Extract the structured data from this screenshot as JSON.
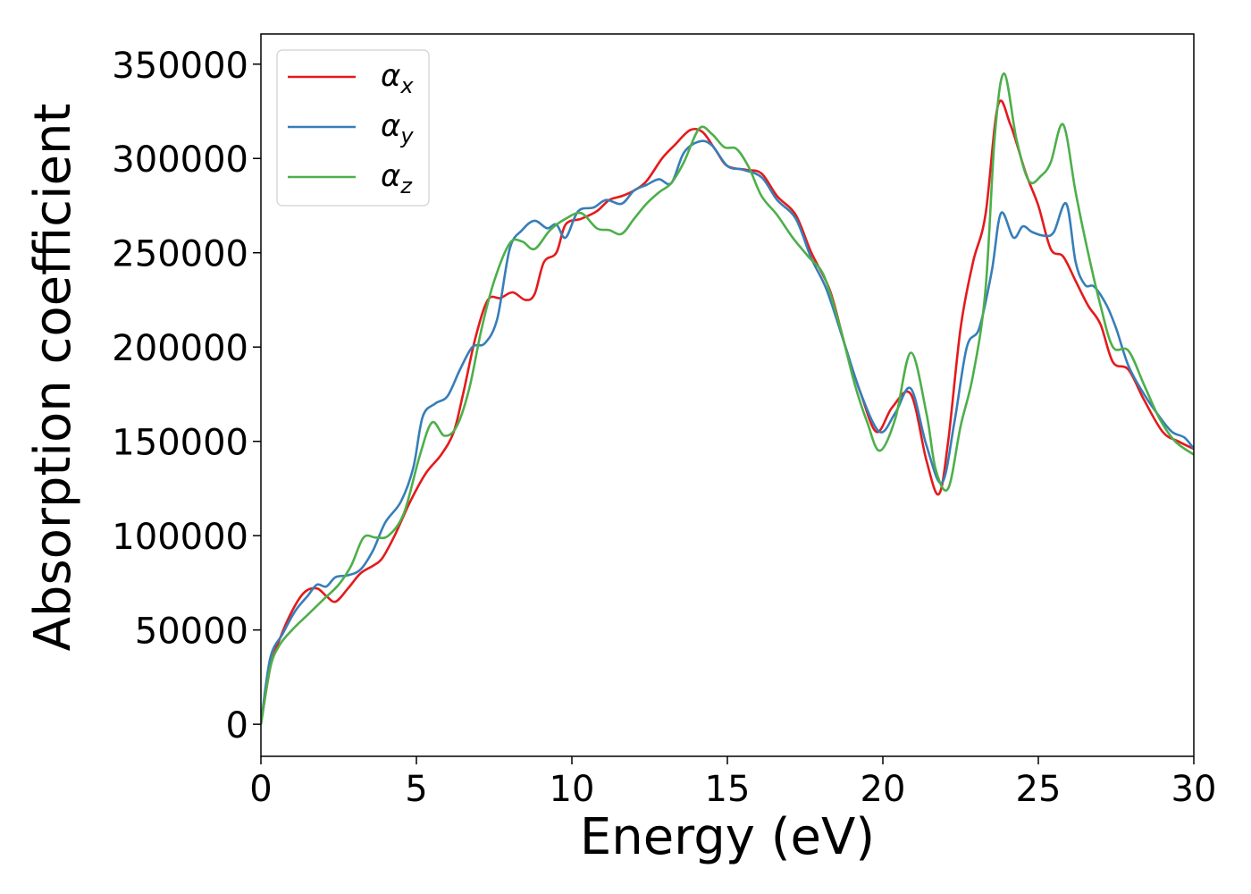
{
  "chart_data": {
    "type": "line",
    "xlabel": "Energy (eV)",
    "ylabel": "Absorption coefficient",
    "xlim": [
      0,
      30
    ],
    "ylim": [
      -17000,
      366000
    ],
    "x_ticks": [
      0,
      5,
      10,
      15,
      20,
      25,
      30
    ],
    "y_ticks": [
      0,
      50000,
      100000,
      150000,
      200000,
      250000,
      300000,
      350000
    ],
    "grid": false,
    "legend_position": "top-left",
    "series": [
      {
        "name": "αx",
        "symbol": "α",
        "subscript": "x",
        "color": "#e41a1c",
        "points": [
          [
            0,
            0
          ],
          [
            0.3,
            30000
          ],
          [
            0.6,
            45000
          ],
          [
            1,
            60000
          ],
          [
            1.4,
            70000
          ],
          [
            1.8,
            72000
          ],
          [
            2.1,
            68000
          ],
          [
            2.4,
            65000
          ],
          [
            2.8,
            72000
          ],
          [
            3.2,
            80000
          ],
          [
            3.6,
            84000
          ],
          [
            3.9,
            88000
          ],
          [
            4.3,
            100000
          ],
          [
            4.8,
            118000
          ],
          [
            5.3,
            133000
          ],
          [
            5.8,
            143000
          ],
          [
            6.2,
            155000
          ],
          [
            6.5,
            175000
          ],
          [
            6.9,
            205000
          ],
          [
            7.3,
            225000
          ],
          [
            7.7,
            226000
          ],
          [
            8.1,
            229000
          ],
          [
            8.5,
            225000
          ],
          [
            8.8,
            228000
          ],
          [
            9.1,
            245000
          ],
          [
            9.5,
            250000
          ],
          [
            9.8,
            265000
          ],
          [
            10.3,
            268000
          ],
          [
            10.8,
            272000
          ],
          [
            11.2,
            278000
          ],
          [
            11.6,
            280000
          ],
          [
            12,
            283000
          ],
          [
            12.4,
            288000
          ],
          [
            12.9,
            300000
          ],
          [
            13.3,
            307000
          ],
          [
            13.8,
            315000
          ],
          [
            14.2,
            314000
          ],
          [
            14.6,
            305000
          ],
          [
            15,
            296000
          ],
          [
            15.6,
            294000
          ],
          [
            16.1,
            292000
          ],
          [
            16.6,
            280000
          ],
          [
            17.2,
            270000
          ],
          [
            17.7,
            250000
          ],
          [
            18.3,
            230000
          ],
          [
            18.8,
            200000
          ],
          [
            19.3,
            175000
          ],
          [
            19.8,
            155000
          ],
          [
            20.3,
            168000
          ],
          [
            20.9,
            175000
          ],
          [
            21.4,
            140000
          ],
          [
            21.8,
            122000
          ],
          [
            22.1,
            150000
          ],
          [
            22.5,
            210000
          ],
          [
            22.9,
            245000
          ],
          [
            23.3,
            270000
          ],
          [
            23.7,
            328000
          ],
          [
            24.1,
            318000
          ],
          [
            24.6,
            292000
          ],
          [
            25,
            275000
          ],
          [
            25.4,
            252000
          ],
          [
            25.8,
            248000
          ],
          [
            26.2,
            235000
          ],
          [
            26.6,
            222000
          ],
          [
            27,
            212000
          ],
          [
            27.4,
            192000
          ],
          [
            27.9,
            188000
          ],
          [
            28.4,
            172000
          ],
          [
            29,
            155000
          ],
          [
            29.5,
            150000
          ],
          [
            30,
            146000
          ]
        ]
      },
      {
        "name": "αy",
        "symbol": "α",
        "subscript": "y",
        "color": "#377eb8",
        "points": [
          [
            0,
            0
          ],
          [
            0.3,
            35000
          ],
          [
            0.7,
            48000
          ],
          [
            1.1,
            60000
          ],
          [
            1.5,
            68000
          ],
          [
            1.8,
            74000
          ],
          [
            2.1,
            73000
          ],
          [
            2.4,
            78000
          ],
          [
            2.8,
            79000
          ],
          [
            3.2,
            82000
          ],
          [
            3.6,
            92000
          ],
          [
            4,
            107000
          ],
          [
            4.5,
            118000
          ],
          [
            4.9,
            136000
          ],
          [
            5.2,
            163000
          ],
          [
            5.6,
            170000
          ],
          [
            6,
            174000
          ],
          [
            6.4,
            188000
          ],
          [
            6.8,
            200000
          ],
          [
            7.2,
            202000
          ],
          [
            7.6,
            215000
          ],
          [
            8,
            252000
          ],
          [
            8.4,
            262000
          ],
          [
            8.8,
            267000
          ],
          [
            9.2,
            263000
          ],
          [
            9.5,
            265000
          ],
          [
            9.8,
            258000
          ],
          [
            10.2,
            272000
          ],
          [
            10.7,
            274000
          ],
          [
            11.1,
            278000
          ],
          [
            11.6,
            276000
          ],
          [
            12,
            283000
          ],
          [
            12.4,
            286000
          ],
          [
            12.8,
            289000
          ],
          [
            13.2,
            287000
          ],
          [
            13.6,
            303000
          ],
          [
            14.1,
            309000
          ],
          [
            14.5,
            307000
          ],
          [
            15,
            296000
          ],
          [
            15.5,
            294000
          ],
          [
            16.1,
            290000
          ],
          [
            16.6,
            278000
          ],
          [
            17.2,
            268000
          ],
          [
            17.7,
            247000
          ],
          [
            18.2,
            230000
          ],
          [
            18.8,
            200000
          ],
          [
            19.3,
            175000
          ],
          [
            19.9,
            155000
          ],
          [
            20.4,
            165000
          ],
          [
            20.9,
            178000
          ],
          [
            21.4,
            148000
          ],
          [
            21.9,
            128000
          ],
          [
            22.3,
            160000
          ],
          [
            22.7,
            200000
          ],
          [
            23.1,
            210000
          ],
          [
            23.5,
            240000
          ],
          [
            23.8,
            271000
          ],
          [
            24.2,
            258000
          ],
          [
            24.5,
            264000
          ],
          [
            24.8,
            261000
          ],
          [
            25.2,
            259000
          ],
          [
            25.5,
            261000
          ],
          [
            25.9,
            276000
          ],
          [
            26.2,
            245000
          ],
          [
            26.5,
            233000
          ],
          [
            26.8,
            232000
          ],
          [
            27.2,
            222000
          ],
          [
            27.5,
            210000
          ],
          [
            27.9,
            190000
          ],
          [
            28.4,
            175000
          ],
          [
            28.9,
            163000
          ],
          [
            29.3,
            155000
          ],
          [
            29.7,
            152000
          ],
          [
            30,
            146000
          ]
        ]
      },
      {
        "name": "αz",
        "symbol": "α",
        "subscript": "z",
        "color": "#4daf4a",
        "points": [
          [
            0,
            0
          ],
          [
            0.3,
            30000
          ],
          [
            0.6,
            42000
          ],
          [
            1,
            50000
          ],
          [
            1.5,
            58000
          ],
          [
            2,
            66000
          ],
          [
            2.5,
            74000
          ],
          [
            2.9,
            84000
          ],
          [
            3.3,
            99000
          ],
          [
            3.7,
            99000
          ],
          [
            4.1,
            100000
          ],
          [
            4.6,
            112000
          ],
          [
            5.1,
            142000
          ],
          [
            5.5,
            160000
          ],
          [
            5.9,
            153000
          ],
          [
            6.3,
            158000
          ],
          [
            6.7,
            178000
          ],
          [
            7.1,
            210000
          ],
          [
            7.5,
            235000
          ],
          [
            8,
            255000
          ],
          [
            8.4,
            256000
          ],
          [
            8.8,
            252000
          ],
          [
            9.3,
            262000
          ],
          [
            9.8,
            268000
          ],
          [
            10.3,
            271000
          ],
          [
            10.8,
            263000
          ],
          [
            11.2,
            262000
          ],
          [
            11.6,
            260000
          ],
          [
            12,
            268000
          ],
          [
            12.4,
            276000
          ],
          [
            12.8,
            282000
          ],
          [
            13.2,
            287000
          ],
          [
            13.6,
            298000
          ],
          [
            14.1,
            316000
          ],
          [
            14.5,
            313000
          ],
          [
            14.9,
            306000
          ],
          [
            15.3,
            305000
          ],
          [
            15.7,
            295000
          ],
          [
            16.1,
            280000
          ],
          [
            16.6,
            270000
          ],
          [
            17.1,
            258000
          ],
          [
            17.6,
            248000
          ],
          [
            18.1,
            238000
          ],
          [
            18.6,
            212000
          ],
          [
            19.1,
            180000
          ],
          [
            19.5,
            160000
          ],
          [
            19.9,
            145000
          ],
          [
            20.4,
            162000
          ],
          [
            20.9,
            197000
          ],
          [
            21.4,
            165000
          ],
          [
            21.7,
            135000
          ],
          [
            22.1,
            125000
          ],
          [
            22.5,
            158000
          ],
          [
            22.9,
            185000
          ],
          [
            23.3,
            230000
          ],
          [
            23.6,
            312000
          ],
          [
            23.9,
            345000
          ],
          [
            24.3,
            310000
          ],
          [
            24.7,
            288000
          ],
          [
            25.1,
            291000
          ],
          [
            25.4,
            298000
          ],
          [
            25.8,
            318000
          ],
          [
            26.2,
            282000
          ],
          [
            26.6,
            250000
          ],
          [
            27,
            222000
          ],
          [
            27.4,
            200000
          ],
          [
            27.9,
            198000
          ],
          [
            28.4,
            180000
          ],
          [
            28.9,
            162000
          ],
          [
            29.4,
            150000
          ],
          [
            30,
            143000
          ]
        ]
      }
    ]
  }
}
